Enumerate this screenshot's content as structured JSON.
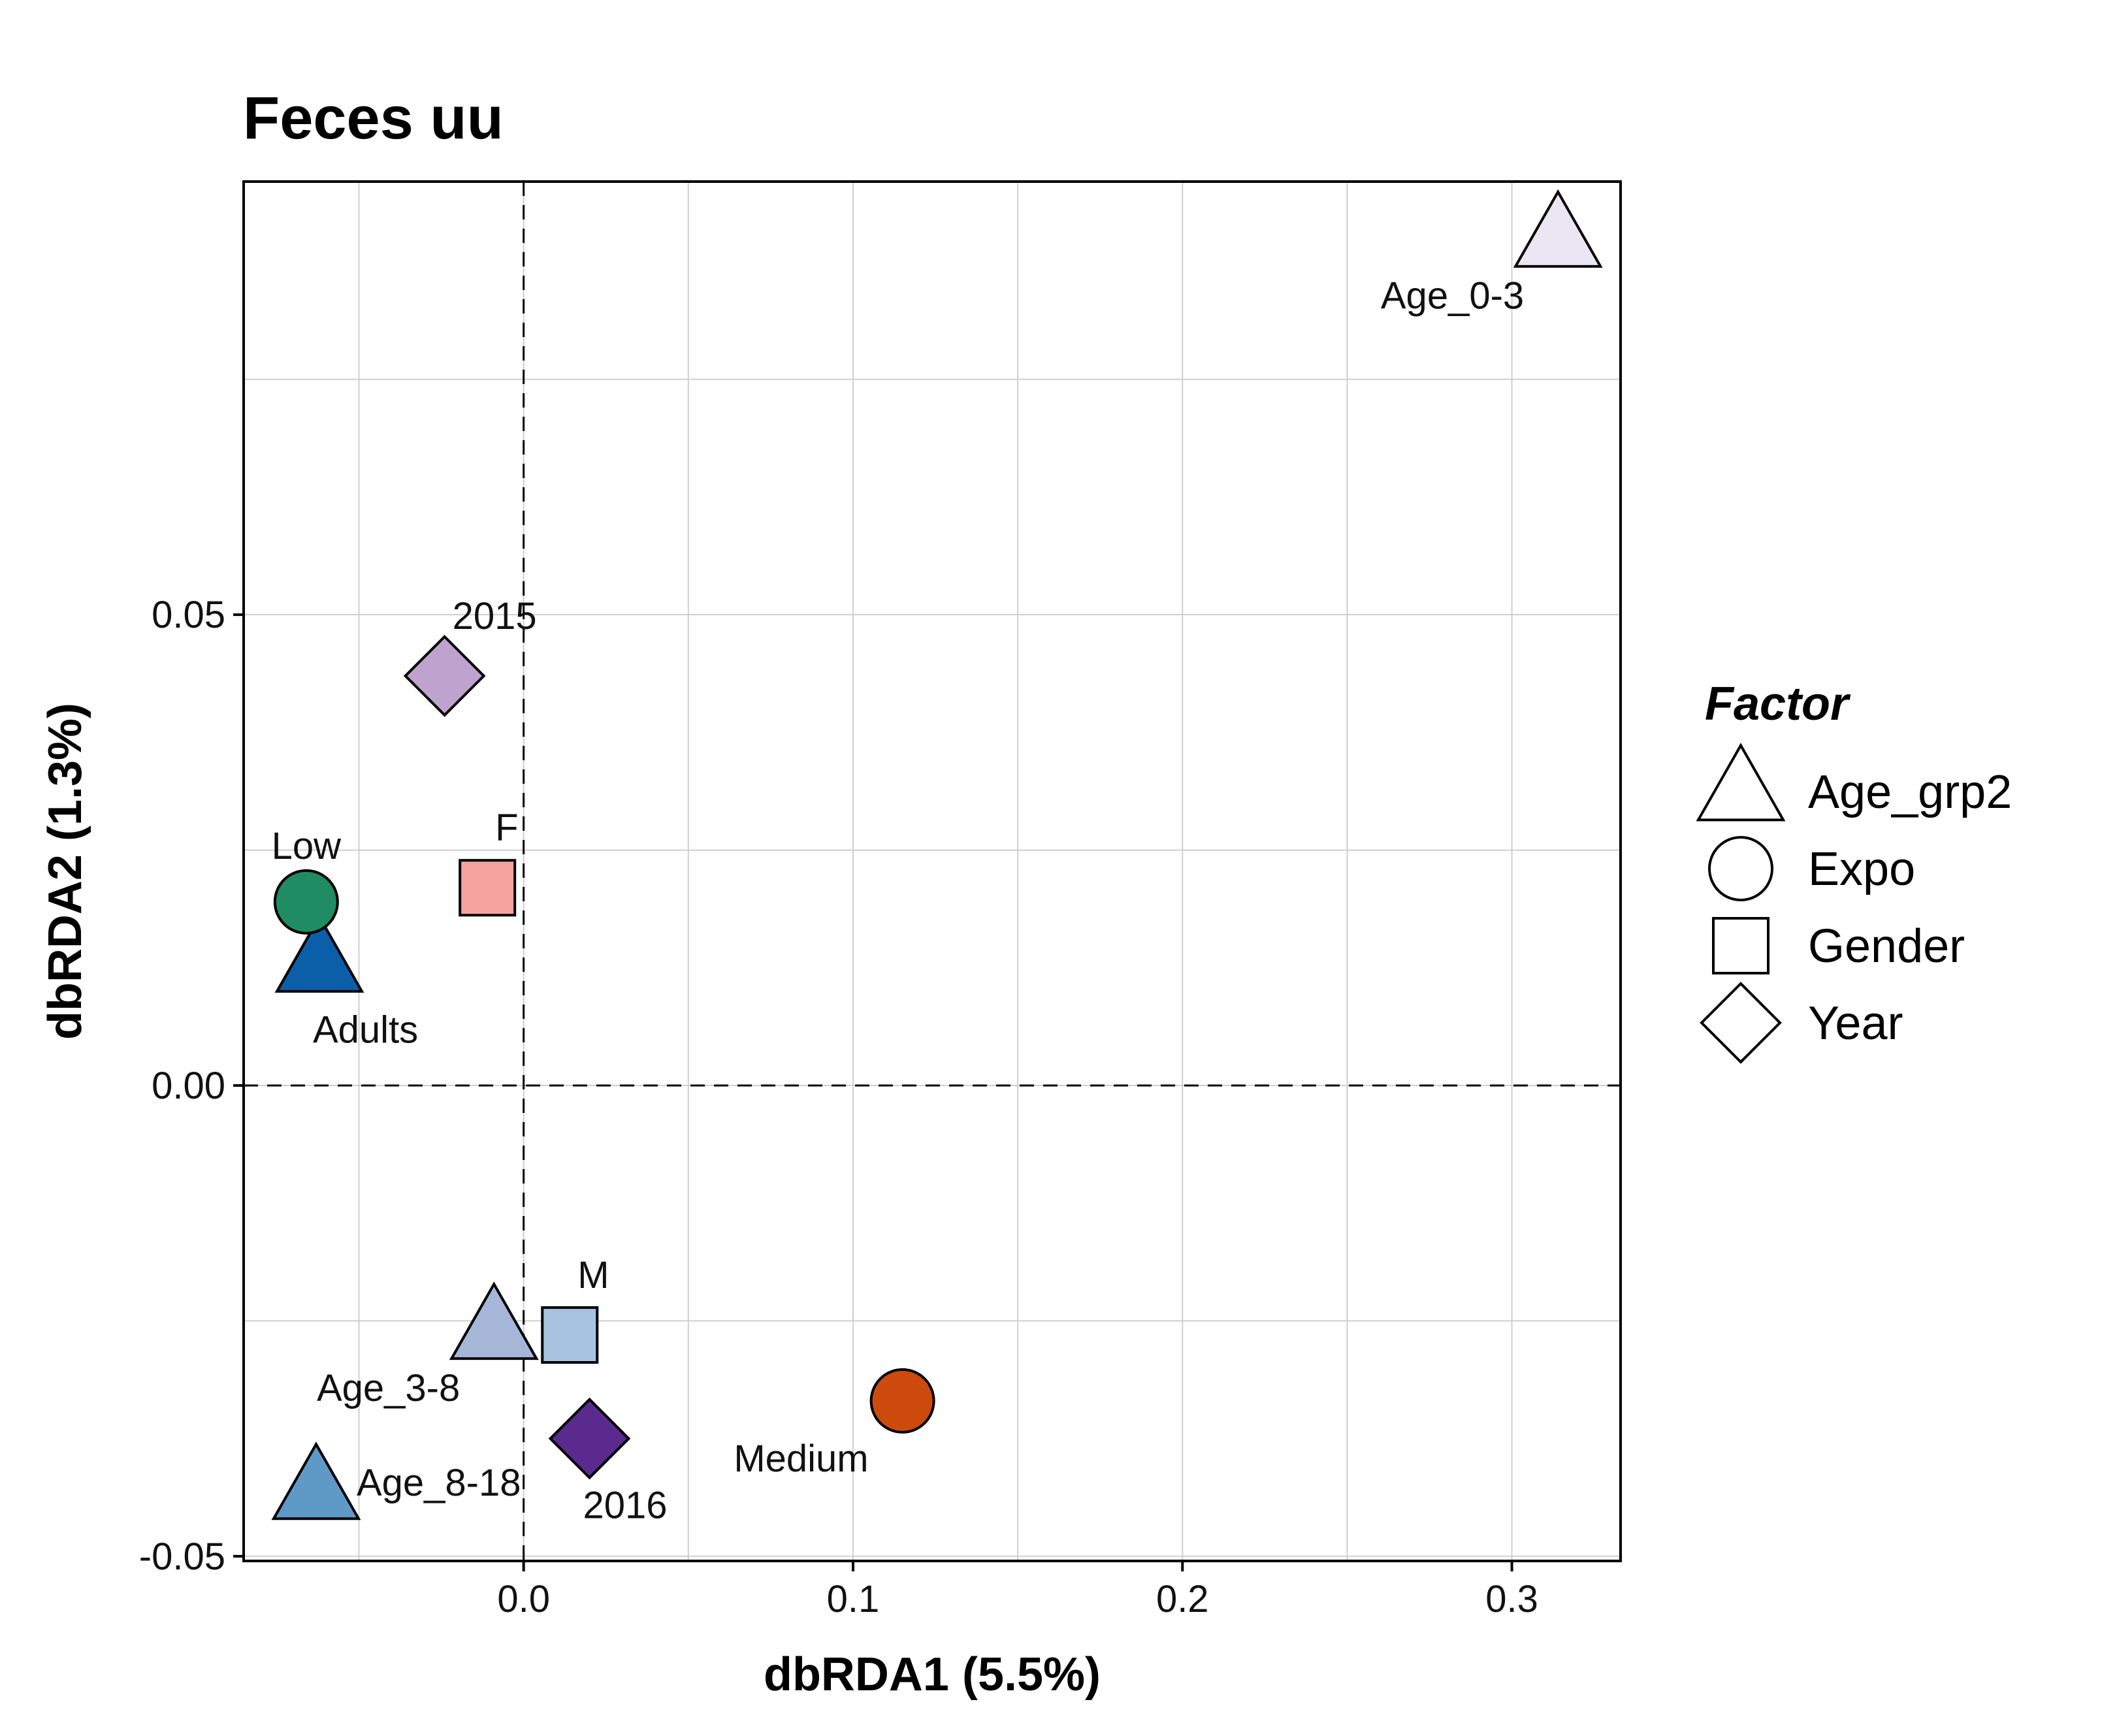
{
  "chart_data": {
    "type": "scatter",
    "title": "Feces uu",
    "xlabel": "dbRDA1 (5.5%)",
    "ylabel": "dbRDA2 (1.3%)",
    "xlim": [
      -0.085,
      0.333
    ],
    "ylim": [
      -0.0505,
      0.096
    ],
    "x_ticks": [
      0.0,
      0.1,
      0.2,
      0.3
    ],
    "x_tick_labels": [
      "0.0",
      "0.1",
      "0.2",
      "0.3"
    ],
    "y_ticks": [
      -0.05,
      0.0,
      0.05
    ],
    "y_tick_labels": [
      "-0.05",
      "0.00",
      "0.05"
    ],
    "grid": true,
    "reference_lines": {
      "x": 0,
      "y": 0,
      "style": "dashed"
    },
    "points": [
      {
        "label": "Age_0-3",
        "x": 0.314,
        "y": 0.09,
        "factor": "Age_grp2",
        "color": "#eae6f3",
        "label_pos": "below-left"
      },
      {
        "label": "Adults",
        "x": -0.062,
        "y": 0.013,
        "factor": "Age_grp2",
        "color": "#0b5ea8",
        "label_pos": "below-right"
      },
      {
        "label": "Age_3-8",
        "x": -0.009,
        "y": -0.026,
        "factor": "Age_grp2",
        "color": "#a6b6d8",
        "label_pos": "below-left"
      },
      {
        "label": "Age_8-18",
        "x": -0.063,
        "y": -0.043,
        "factor": "Age_grp2",
        "color": "#5f9ac7",
        "label_pos": "right"
      },
      {
        "label": "Low",
        "x": -0.066,
        "y": 0.0195,
        "factor": "Expo",
        "color": "#1f8c63",
        "label_pos": "above"
      },
      {
        "label": "Medium",
        "x": 0.115,
        "y": -0.0335,
        "factor": "Expo",
        "color": "#cc4a0c",
        "label_pos": "below-left"
      },
      {
        "label": "F",
        "x": -0.011,
        "y": 0.021,
        "factor": "Gender",
        "color": "#f7a39d",
        "label_pos": "above-right"
      },
      {
        "label": "M",
        "x": 0.014,
        "y": -0.0265,
        "factor": "Gender",
        "color": "#a6c3e0",
        "label_pos": "above-right"
      },
      {
        "label": "2015",
        "x": -0.024,
        "y": 0.0435,
        "factor": "Year",
        "color": "#bfa3cf",
        "label_pos": "above-right"
      },
      {
        "label": "2016",
        "x": 0.02,
        "y": -0.0375,
        "factor": "Year",
        "color": "#5b2a8e",
        "label_pos": "below-right"
      }
    ],
    "legend": {
      "title": "Factor",
      "position": "right",
      "entries": [
        {
          "label": "Age_grp2",
          "shape": "triangle"
        },
        {
          "label": "Expo",
          "shape": "circle"
        },
        {
          "label": "Gender",
          "shape": "square"
        },
        {
          "label": "Year",
          "shape": "diamond"
        }
      ]
    }
  }
}
